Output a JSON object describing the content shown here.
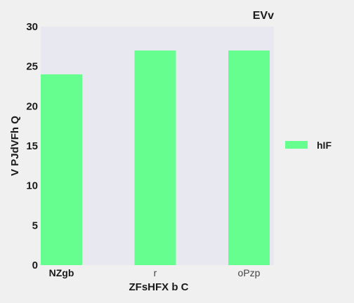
{
  "chart_data": {
    "type": "bar",
    "title": "EVv",
    "xlabel": "ZFsHFX b C",
    "ylabel": "V PJdVFh Q",
    "categories": [
      "NZgb",
      "r",
      "oPzp"
    ],
    "series": [
      {
        "name": "hIF",
        "values": [
          24,
          27,
          27
        ]
      }
    ],
    "ylim": [
      0,
      30
    ],
    "yticks": [
      0,
      5,
      10,
      15,
      20,
      25,
      30
    ],
    "grid": false,
    "legend": "right",
    "colors": {
      "bar": "#66ff8f",
      "plot_bg": "#e8e8f0",
      "page_bg": "#f0f0f0"
    }
  }
}
